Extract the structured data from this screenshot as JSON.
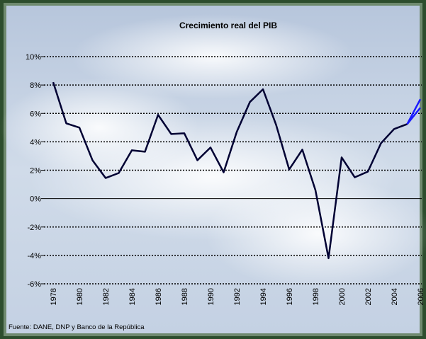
{
  "chart_data": {
    "type": "line",
    "title": "Crecimiento real del PIB",
    "source": "Fuente: DANE, DNP y Banco de la República",
    "x": [
      1978,
      1979,
      1980,
      1981,
      1982,
      1983,
      1984,
      1985,
      1986,
      1987,
      1988,
      1989,
      1990,
      1991,
      1992,
      1993,
      1994,
      1995,
      1996,
      1997,
      1998,
      1999,
      2000,
      2001,
      2002,
      2003,
      2004,
      2005,
      2006
    ],
    "series": [
      {
        "color": "#000033",
        "values": [
          8.2,
          5.3,
          5.0,
          2.7,
          1.45,
          1.8,
          3.4,
          3.3,
          5.9,
          4.55,
          4.6,
          2.7,
          3.6,
          1.85,
          4.7,
          6.8,
          7.7,
          5.2,
          2.05,
          3.45,
          0.6,
          -4.2,
          2.9,
          1.5,
          1.9,
          3.9,
          4.9,
          5.25,
          null
        ]
      },
      {
        "color": "#1a1aff",
        "values": [
          null,
          null,
          null,
          null,
          null,
          null,
          null,
          null,
          null,
          null,
          null,
          null,
          null,
          null,
          null,
          null,
          null,
          null,
          null,
          null,
          null,
          null,
          null,
          null,
          null,
          null,
          null,
          5.25,
          7.0
        ]
      },
      {
        "color": "#1a1aff",
        "values": [
          null,
          null,
          null,
          null,
          null,
          null,
          null,
          null,
          null,
          null,
          null,
          null,
          null,
          null,
          null,
          null,
          null,
          null,
          null,
          null,
          null,
          null,
          null,
          null,
          null,
          null,
          null,
          5.25,
          6.4
        ]
      }
    ],
    "xlim": [
      1978,
      2006
    ],
    "xticks": [
      1978,
      1980,
      1982,
      1984,
      1986,
      1988,
      1990,
      1992,
      1994,
      1996,
      1998,
      2000,
      2002,
      2004,
      2006
    ],
    "ylim": [
      -6,
      10
    ],
    "yticks": [
      {
        "value": -6,
        "label": "-6%"
      },
      {
        "value": -4,
        "label": "-4%"
      },
      {
        "value": -2,
        "label": "-2%"
      },
      {
        "value": 0,
        "label": "0%"
      },
      {
        "value": 2,
        "label": "2%"
      },
      {
        "value": 4,
        "label": "4%"
      },
      {
        "value": 6,
        "label": "6%"
      },
      {
        "value": 8,
        "label": "8%"
      },
      {
        "value": 10,
        "label": "10%"
      }
    ],
    "grid": true
  }
}
